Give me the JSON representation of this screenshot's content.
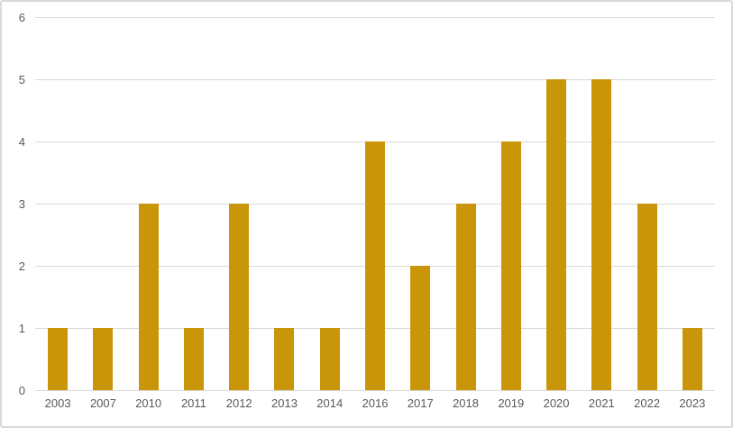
{
  "chart_data": {
    "type": "bar",
    "title": "",
    "xlabel": "",
    "ylabel": "",
    "categories": [
      "2003",
      "2007",
      "2010",
      "2011",
      "2012",
      "2013",
      "2014",
      "2016",
      "2017",
      "2018",
      "2019",
      "2020",
      "2021",
      "2022",
      "2023"
    ],
    "values": [
      1,
      1,
      3,
      1,
      3,
      1,
      1,
      4,
      2,
      3,
      4,
      5,
      5,
      3,
      1
    ],
    "ylim": [
      0,
      6
    ],
    "yticks": [
      0,
      1,
      2,
      3,
      4,
      5,
      6
    ],
    "grid": true,
    "legend": false,
    "colors": {
      "bar": "#C9960A",
      "gridline": "#D9D9D9",
      "tick_label": "#595959",
      "background": "#FFFFFF",
      "frame_border": "#D9D9D9"
    }
  }
}
